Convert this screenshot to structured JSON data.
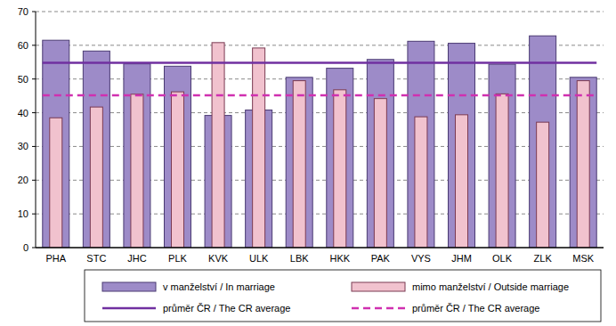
{
  "chart_data": {
    "type": "bar",
    "categories": [
      "PHA",
      "STC",
      "JHC",
      "PLK",
      "KVK",
      "ULK",
      "LBK",
      "HKK",
      "PAK",
      "VYS",
      "JHM",
      "OLK",
      "ZLK",
      "MSK"
    ],
    "series": [
      {
        "name": "v manželství / In marriage",
        "type": "bar",
        "color": "#9d8bc8",
        "values": [
          61.5,
          58.3,
          54.5,
          53.8,
          39.2,
          40.8,
          50.5,
          53.2,
          55.8,
          61.2,
          60.6,
          54.4,
          62.8,
          50.5
        ]
      },
      {
        "name": "mimo manželství / Outside marriage",
        "type": "bar",
        "color": "#f1c2ce",
        "values": [
          38.5,
          41.7,
          45.5,
          46.2,
          60.8,
          59.2,
          49.5,
          46.8,
          44.2,
          38.8,
          39.4,
          45.6,
          37.2,
          49.5
        ]
      },
      {
        "name": "průměr ČR / The CR average",
        "type": "line",
        "color": "#7030a0",
        "line_style": "solid",
        "values": [
          54.8,
          54.8,
          54.8,
          54.8,
          54.8,
          54.8,
          54.8,
          54.8,
          54.8,
          54.8,
          54.8,
          54.8,
          54.8,
          54.8
        ]
      },
      {
        "name": "průměr ČR / The CR average",
        "type": "line",
        "color": "#d030b0",
        "line_style": "dashed",
        "values": [
          45.2,
          45.2,
          45.2,
          45.2,
          45.2,
          45.2,
          45.2,
          45.2,
          45.2,
          45.2,
          45.2,
          45.2,
          45.2,
          45.2
        ]
      }
    ],
    "ylim": [
      0,
      70
    ],
    "yticks": [
      0,
      10,
      20,
      30,
      40,
      50,
      60,
      70
    ],
    "grid": true,
    "legend": "bottom"
  }
}
